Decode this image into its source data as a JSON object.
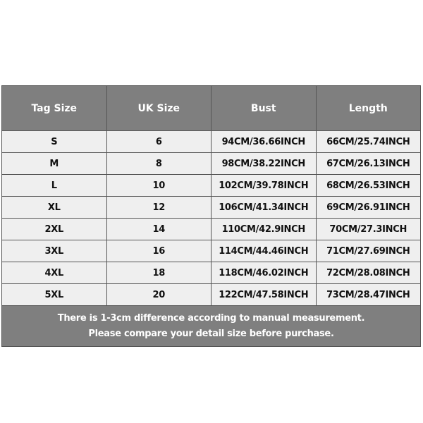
{
  "headers": [
    "Tag Size",
    "UK Size",
    "Bust",
    "Length"
  ],
  "rows": [
    [
      "S",
      "6",
      "94CM/36.66INCH",
      "66CM/25.74INCH"
    ],
    [
      "M",
      "8",
      "98CM/38.22INCH",
      "67CM/26.13INCH"
    ],
    [
      "L",
      "10",
      "102CM/39.78INCH",
      "68CM/26.53INCH"
    ],
    [
      "XL",
      "12",
      "106CM/41.34INCH",
      "69CM/26.91INCH"
    ],
    [
      "2XL",
      "14",
      "110CM/42.9INCH",
      "70CM/27.3INCH"
    ],
    [
      "3XL",
      "16",
      "114CM/44.46INCH",
      "71CM/27.69INCH"
    ],
    [
      "4XL",
      "18",
      "118CM/46.02INCH",
      "72CM/28.08INCH"
    ],
    [
      "5XL",
      "20",
      "122CM/47.58INCH",
      "73CM/28.47INCH"
    ]
  ],
  "note": [
    "There is 1-3cm difference according to manual measurement.",
    "Please compare your detail size before purchase."
  ]
}
